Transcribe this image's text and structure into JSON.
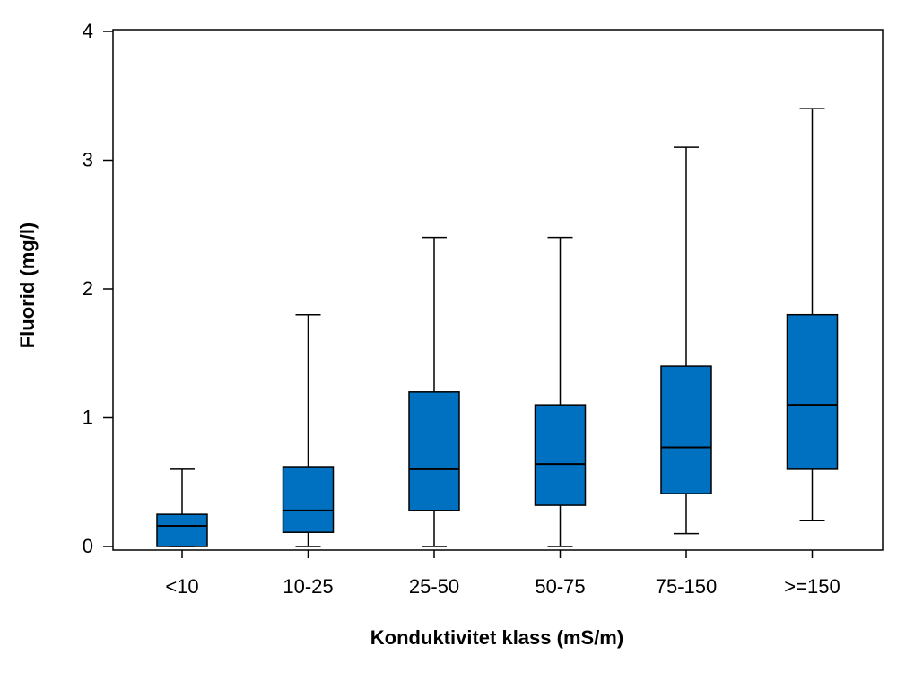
{
  "chart_data": {
    "type": "box",
    "xlabel": "Konduktivitet klass (mS/m)",
    "ylabel": "Fluorid (mg/l)",
    "ylim": [
      0,
      4
    ],
    "yticks": [
      0,
      1,
      2,
      3,
      4
    ],
    "grid": false,
    "box_color": "#0070C0",
    "categories": [
      "<10",
      "10-25",
      "25-50",
      "50-75",
      "75-150",
      ">=150"
    ],
    "boxes": [
      {
        "category": "<10",
        "min": 0.0,
        "q1": 0.0,
        "median": 0.16,
        "q3": 0.25,
        "max": 0.6
      },
      {
        "category": "10-25",
        "min": 0.0,
        "q1": 0.11,
        "median": 0.28,
        "q3": 0.62,
        "max": 1.8
      },
      {
        "category": "25-50",
        "min": 0.0,
        "q1": 0.28,
        "median": 0.6,
        "q3": 1.2,
        "max": 2.4
      },
      {
        "category": "50-75",
        "min": 0.0,
        "q1": 0.32,
        "median": 0.64,
        "q3": 1.1,
        "max": 2.4
      },
      {
        "category": "75-150",
        "min": 0.1,
        "q1": 0.41,
        "median": 0.77,
        "q3": 1.4,
        "max": 3.1
      },
      {
        "category": ">=150",
        "min": 0.2,
        "q1": 0.6,
        "median": 1.1,
        "q3": 1.8,
        "max": 3.4
      }
    ]
  }
}
